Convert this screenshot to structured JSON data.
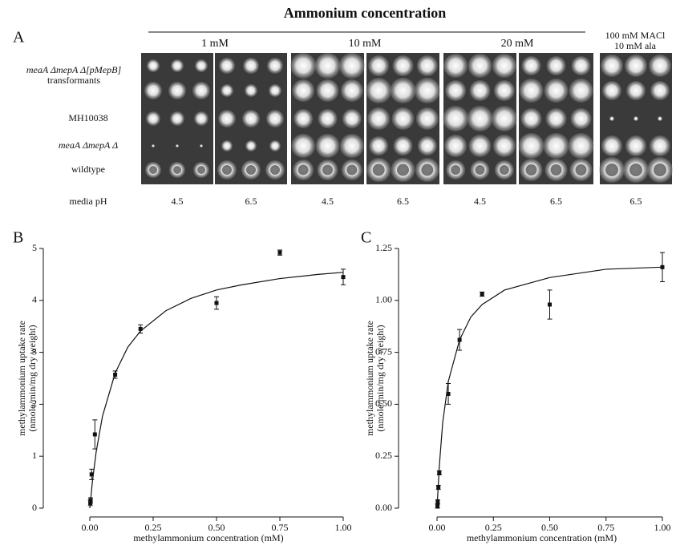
{
  "panel_a": {
    "label": "A",
    "title": "Ammonium concentration",
    "groups": [
      "1 mM",
      "10 mM",
      "20 mM"
    ],
    "extra_group": [
      "100 mM MACl",
      "10 mM ala"
    ],
    "row_labels": [
      [
        "meaA ΔmepA Δ[pMepB]",
        "transformants"
      ],
      [
        "MH10038"
      ],
      [
        "meaA ΔmepA Δ"
      ],
      [
        "wildtype"
      ]
    ],
    "ph_label": "media pH",
    "ph_values": [
      "4.5",
      "6.5",
      "4.5",
      "6.5",
      "4.5",
      "6.5",
      "6.5"
    ]
  },
  "chart_data": [
    {
      "type": "scatter",
      "label": "B",
      "xlabel": "methylammonium concentration (mM)",
      "ylabel": [
        "methylammonium uptake rate",
        "(nmole/min/mg dry weight)"
      ],
      "xlim": [
        0,
        1
      ],
      "ylim": [
        0,
        5
      ],
      "xticks": [
        {
          "value": 0,
          "label": "0.00"
        },
        {
          "value": 0.25,
          "label": "0.25"
        },
        {
          "value": 0.5,
          "label": "0.50"
        },
        {
          "value": 0.75,
          "label": "0.75"
        },
        {
          "value": 1,
          "label": "1.00"
        }
      ],
      "yticks": [
        0,
        1,
        2,
        3,
        4,
        5
      ],
      "color": "#111111",
      "points": {
        "x": [
          0.002,
          0.003,
          0.007,
          0.02,
          0.1,
          0.2,
          0.5,
          0.75,
          1.0
        ],
        "values": [
          0.1,
          0.15,
          0.65,
          1.42,
          2.57,
          3.45,
          3.95,
          4.92,
          4.45
        ],
        "errors": [
          0.05,
          0.05,
          0.1,
          0.28,
          0.07,
          0.08,
          0.12,
          0.05,
          0.15
        ]
      },
      "fit": {
        "x": [
          0,
          0.01,
          0.025,
          0.05,
          0.1,
          0.15,
          0.2,
          0.3,
          0.4,
          0.5,
          0.6,
          0.75,
          0.9,
          1.0
        ],
        "values": [
          0,
          0.5,
          1.08,
          1.77,
          2.6,
          3.1,
          3.41,
          3.8,
          4.04,
          4.2,
          4.3,
          4.42,
          4.5,
          4.54
        ]
      }
    },
    {
      "type": "scatter",
      "label": "C",
      "xlabel": "methylammonium concentration (mM)",
      "ylabel": [
        "methylammonium uptake rate",
        "(nmole/min/mg dry weight)"
      ],
      "xlim": [
        0,
        1
      ],
      "ylim": [
        0,
        1.25
      ],
      "xticks": [
        {
          "value": 0,
          "label": "0.00"
        },
        {
          "value": 0.25,
          "label": "0.25"
        },
        {
          "value": 0.5,
          "label": "0.50"
        },
        {
          "value": 0.75,
          "label": "0.75"
        },
        {
          "value": 1,
          "label": "1.00"
        }
      ],
      "yticks": [
        {
          "value": 0,
          "label": "0.00"
        },
        {
          "value": 0.25,
          "label": "0.25"
        },
        {
          "value": 0.5,
          "label": "0.50"
        },
        {
          "value": 0.75,
          "label": "0.75"
        },
        {
          "value": 1,
          "label": "1.00"
        },
        {
          "value": 1.25,
          "label": "1.25"
        }
      ],
      "color": "#111111",
      "points": {
        "x": [
          0.002,
          0.003,
          0.006,
          0.01,
          0.05,
          0.1,
          0.2,
          0.5,
          1.0
        ],
        "values": [
          0.01,
          0.03,
          0.1,
          0.17,
          0.55,
          0.81,
          1.03,
          0.98,
          1.16
        ],
        "errors": [
          0.01,
          0.01,
          0.01,
          0.01,
          0.05,
          0.05,
          0.01,
          0.07,
          0.07
        ]
      },
      "fit": {
        "x": [
          0,
          0.01,
          0.025,
          0.05,
          0.1,
          0.15,
          0.2,
          0.3,
          0.5,
          0.75,
          1.0
        ],
        "values": [
          0,
          0.2,
          0.41,
          0.61,
          0.81,
          0.92,
          0.98,
          1.05,
          1.11,
          1.15,
          1.16
        ]
      }
    }
  ]
}
